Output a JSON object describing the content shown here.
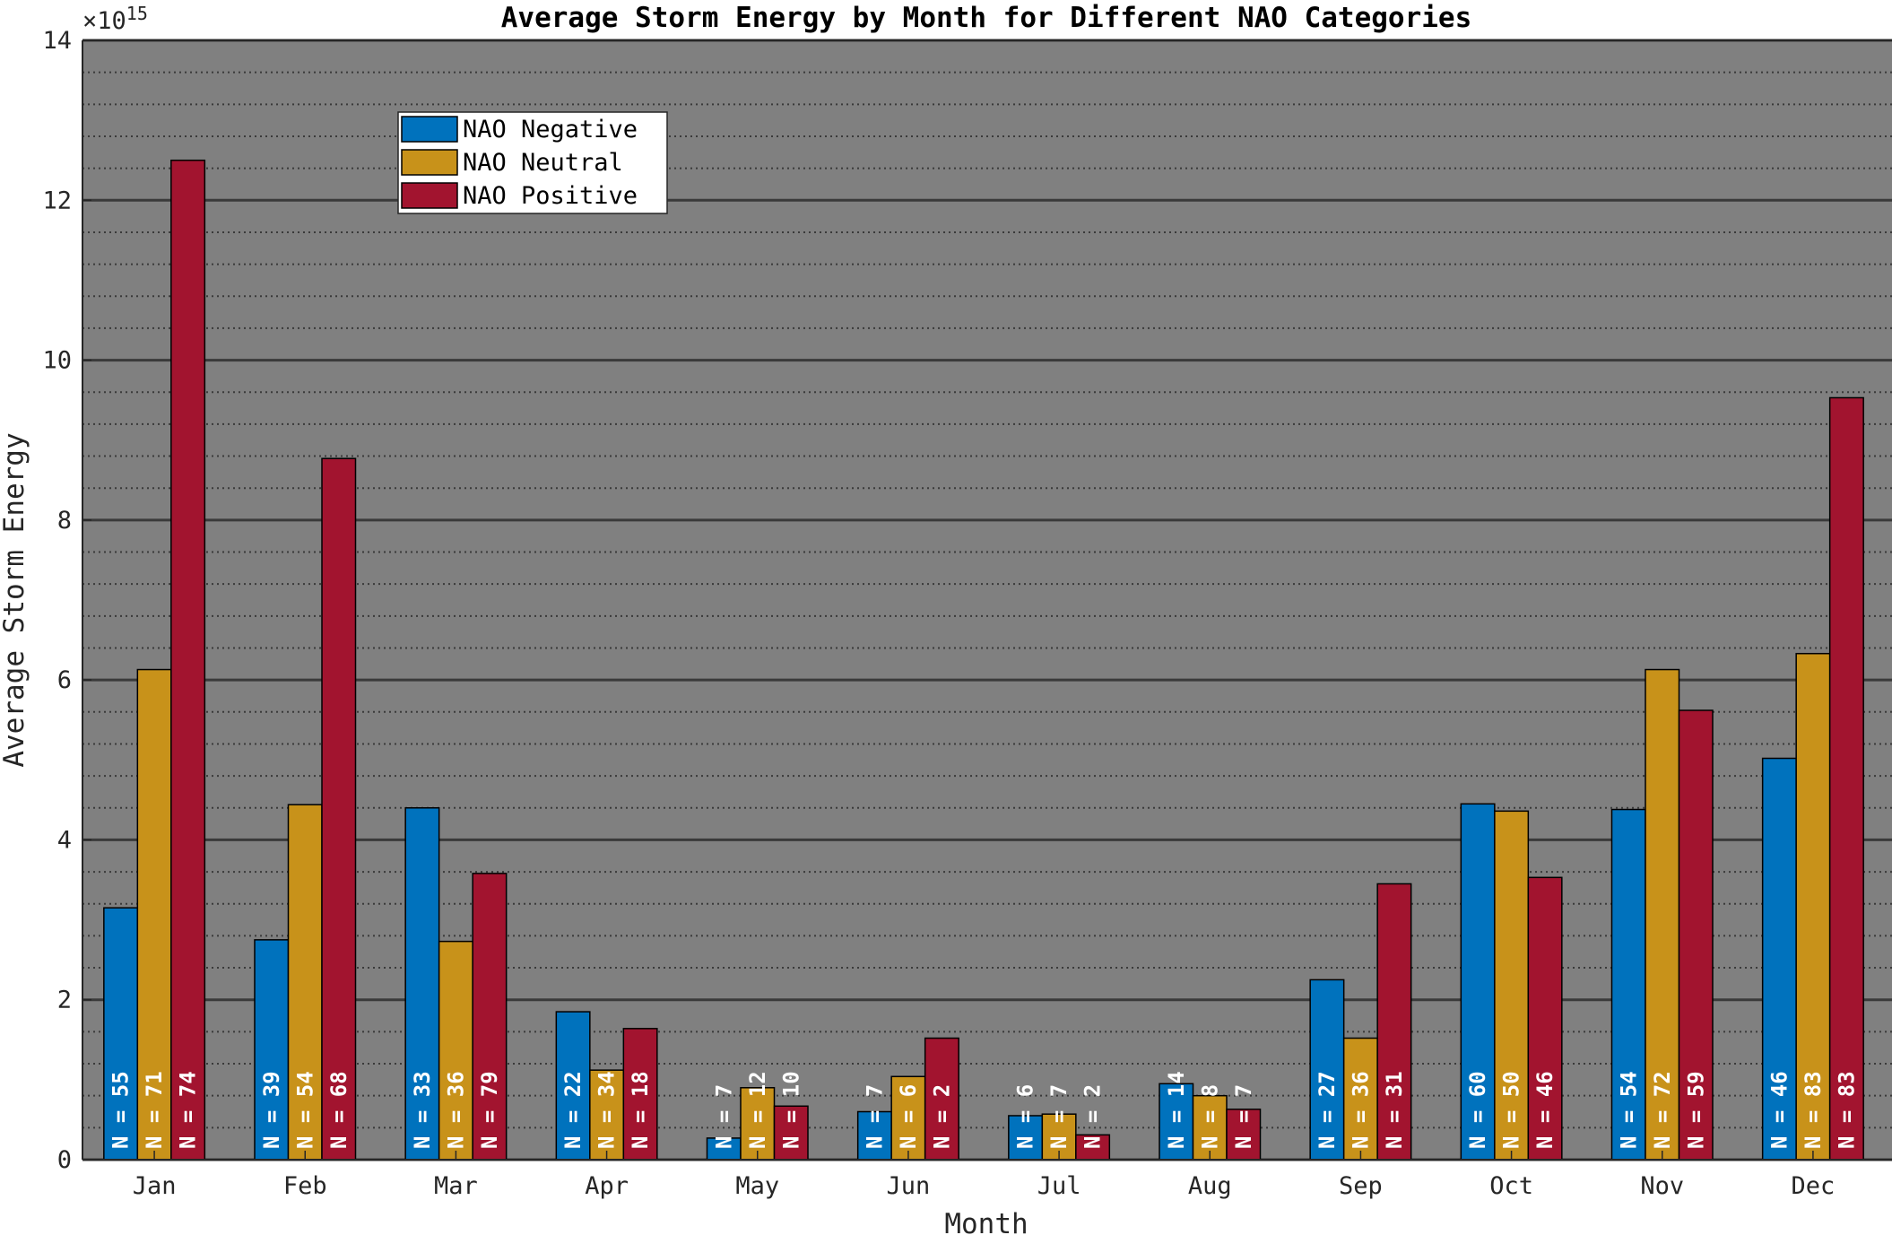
{
  "chart_data": {
    "type": "bar",
    "title": "Average Storm Energy by Month for Different NAO Categories",
    "xlabel": "Month",
    "ylabel": "Average Storm Energy",
    "exponent_label": "×10",
    "exponent_power": "15",
    "ylim": [
      0,
      14
    ],
    "yticks": [
      0,
      2,
      4,
      6,
      8,
      10,
      12,
      14
    ],
    "grid": "major solid, minor dotted",
    "legend_position": "top-left",
    "plot_background": "#808080",
    "categories": [
      "Jan",
      "Feb",
      "Mar",
      "Apr",
      "May",
      "Jun",
      "Jul",
      "Aug",
      "Sep",
      "Oct",
      "Nov",
      "Dec"
    ],
    "series": [
      {
        "name": "NAO Negative",
        "color": "#0072BD",
        "values": [
          3.15,
          2.75,
          4.4,
          1.85,
          0.27,
          0.6,
          0.55,
          0.95,
          2.25,
          4.45,
          4.38,
          5.02
        ],
        "labels": [
          "N = 55",
          "N = 39",
          "N = 33",
          "N = 22",
          "N = 7",
          "N = 7",
          "N = 6",
          "N = 14",
          "N = 27",
          "N = 60",
          "N = 54",
          "N = 46"
        ]
      },
      {
        "name": "NAO Neutral",
        "color": "#C8921A",
        "values": [
          6.13,
          4.44,
          2.73,
          1.12,
          0.9,
          1.04,
          0.57,
          0.8,
          1.52,
          4.36,
          6.13,
          6.33
        ],
        "labels": [
          "N = 71",
          "N = 54",
          "N = 36",
          "N = 34",
          "N = 12",
          "N = 6",
          "N = 7",
          "N = 8",
          "N = 36",
          "N = 50",
          "N = 72",
          "N = 83"
        ]
      },
      {
        "name": "NAO Positive",
        "color": "#A2142F",
        "values": [
          12.5,
          8.77,
          3.58,
          1.64,
          0.67,
          1.52,
          0.31,
          0.63,
          3.45,
          3.53,
          5.62,
          9.53
        ],
        "labels": [
          "N = 74",
          "N = 68",
          "N = 79",
          "N = 18",
          "N = 10",
          "N = 2",
          "N = 2",
          "N = 7",
          "N = 31",
          "N = 46",
          "N = 59",
          "N = 83"
        ]
      }
    ]
  }
}
